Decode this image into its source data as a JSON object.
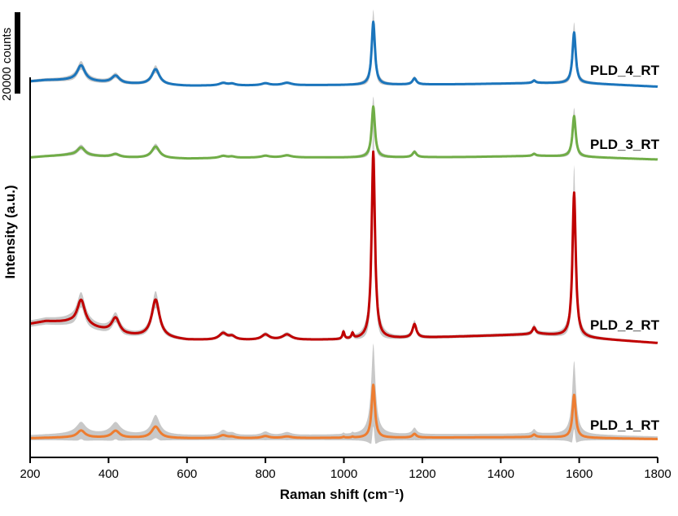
{
  "chart_data": {
    "type": "line",
    "title": "",
    "xlabel": "Raman shift (cm⁻¹)",
    "ylabel": "Intensity (a.u.)",
    "xlim": [
      200,
      1800
    ],
    "x_ticks": [
      200,
      400,
      600,
      800,
      1000,
      1200,
      1400,
      1600,
      1800
    ],
    "y_ticks": [],
    "scale_bar": {
      "label": "20000 counts",
      "value": 20000
    },
    "grid": false,
    "legend": "none",
    "uncertainty_band_color": "#c8c8c8",
    "peaks_cm1": [
      330,
      418,
      520,
      692,
      715,
      800,
      855,
      999,
      1022,
      1075,
      1180,
      1485,
      1587
    ],
    "series": [
      {
        "name": "PLD_4_RT",
        "color": "#1b75bc",
        "baseline_counts": 600,
        "background_counts": [
          [
            200,
            1600
          ],
          [
            240,
            1900
          ],
          [
            300,
            1900
          ],
          [
            440,
            1000
          ],
          [
            600,
            500
          ],
          [
            800,
            600
          ],
          [
            1000,
            700
          ],
          [
            1300,
            900
          ],
          [
            1500,
            1200
          ],
          [
            1620,
            1100
          ],
          [
            1800,
            300
          ]
        ],
        "peak_counts": [
          3800,
          1800,
          3800,
          600,
          400,
          500,
          600,
          0,
          0,
          15500,
          1500,
          600,
          12500
        ],
        "band_scale": 1.0
      },
      {
        "name": "PLD_3_RT",
        "color": "#70ad47",
        "baseline_counts": 500,
        "background_counts": [
          [
            200,
            700
          ],
          [
            240,
            1000
          ],
          [
            300,
            1300
          ],
          [
            440,
            700
          ],
          [
            600,
            400
          ],
          [
            800,
            700
          ],
          [
            1000,
            700
          ],
          [
            1300,
            800
          ],
          [
            1500,
            1100
          ],
          [
            1620,
            800
          ],
          [
            1800,
            200
          ]
        ],
        "peak_counts": [
          2000,
          700,
          2800,
          500,
          300,
          400,
          500,
          0,
          0,
          12500,
          1300,
          500,
          10000
        ],
        "band_scale": 1.0
      },
      {
        "name": "PLD_2_RT",
        "color": "#c00000",
        "baseline_counts": 500,
        "background_counts": [
          [
            200,
            5000
          ],
          [
            240,
            5600
          ],
          [
            300,
            5300
          ],
          [
            440,
            2200
          ],
          [
            600,
            1000
          ],
          [
            800,
            1000
          ],
          [
            1000,
            1100
          ],
          [
            1200,
            1600
          ],
          [
            1500,
            2500
          ],
          [
            1620,
            1500
          ],
          [
            1800,
            300
          ]
        ],
        "peak_counts": [
          6200,
          3700,
          9300,
          1600,
          800,
          1300,
          1300,
          1800,
          1300,
          46000,
          3300,
          1600,
          35500
        ],
        "band_scale": 1.0
      },
      {
        "name": "PLD_1_RT",
        "color": "#ed7d31",
        "baseline_counts": 100,
        "background_counts": [
          [
            200,
            300
          ],
          [
            240,
            400
          ],
          [
            300,
            500
          ],
          [
            440,
            400
          ],
          [
            600,
            300
          ],
          [
            800,
            300
          ],
          [
            1000,
            400
          ],
          [
            1300,
            500
          ],
          [
            1500,
            600
          ],
          [
            1620,
            400
          ],
          [
            1800,
            100
          ]
        ],
        "peak_counts": [
          1700,
          1700,
          2800,
          700,
          300,
          500,
          400,
          200,
          200,
          13000,
          900,
          600,
          10500
        ],
        "band_scale": 4.0
      }
    ]
  }
}
